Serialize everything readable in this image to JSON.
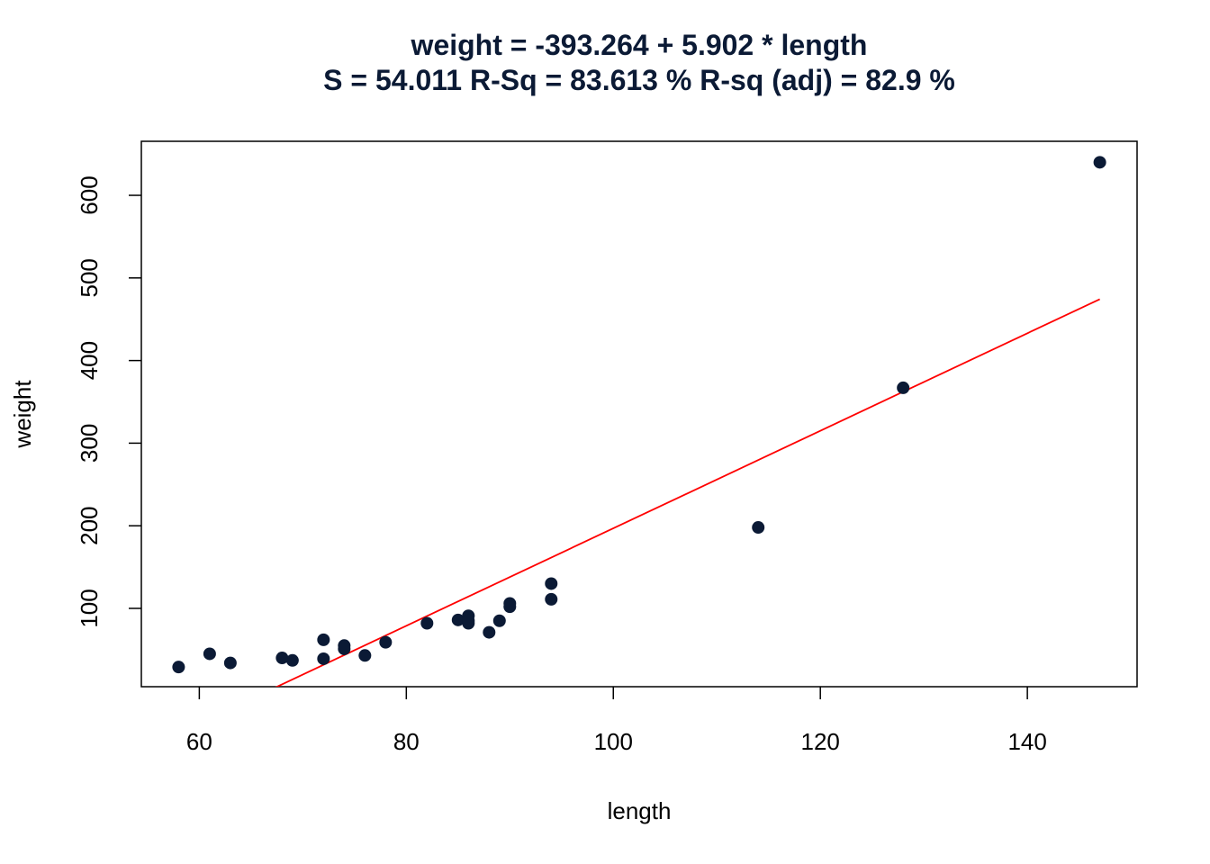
{
  "chart_data": {
    "type": "scatter",
    "title": "weight = -393.264 + 5.902 * length",
    "subtitle": "S = 54.011   R-Sq = 83.613 %  R-sq (adj) = 82.9 %",
    "xlabel": "length",
    "ylabel": "weight",
    "xlim": [
      54.4,
      150.6
    ],
    "ylim": [
      5.2,
      665.4
    ],
    "xticks": [
      "60",
      "80",
      "100",
      "120",
      "140"
    ],
    "yticks": [
      "100",
      "200",
      "300",
      "400",
      "500",
      "600"
    ],
    "grid": false,
    "point_color": "#0b1a35",
    "line_color": "#ff0000",
    "points": [
      {
        "x": 58,
        "y": 29
      },
      {
        "x": 61,
        "y": 45
      },
      {
        "x": 63,
        "y": 34
      },
      {
        "x": 68,
        "y": 40
      },
      {
        "x": 69,
        "y": 37
      },
      {
        "x": 72,
        "y": 62
      },
      {
        "x": 72,
        "y": 39
      },
      {
        "x": 74,
        "y": 55
      },
      {
        "x": 74,
        "y": 51
      },
      {
        "x": 76,
        "y": 43
      },
      {
        "x": 78,
        "y": 59
      },
      {
        "x": 82,
        "y": 82
      },
      {
        "x": 85,
        "y": 86
      },
      {
        "x": 86,
        "y": 91
      },
      {
        "x": 86,
        "y": 82
      },
      {
        "x": 86,
        "y": 85
      },
      {
        "x": 88,
        "y": 71
      },
      {
        "x": 89,
        "y": 85
      },
      {
        "x": 90,
        "y": 106
      },
      {
        "x": 90,
        "y": 102
      },
      {
        "x": 94,
        "y": 130
      },
      {
        "x": 94,
        "y": 111
      },
      {
        "x": 114,
        "y": 198
      },
      {
        "x": 128,
        "y": 367
      },
      {
        "x": 147,
        "y": 640
      }
    ],
    "fit_line": {
      "intercept": -393.264,
      "slope": 5.902,
      "x_range": [
        58,
        147
      ]
    }
  }
}
